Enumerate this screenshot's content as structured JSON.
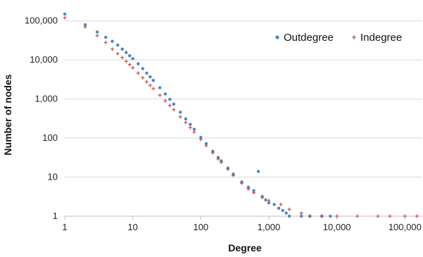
{
  "chart_data": {
    "type": "scatter",
    "title": "",
    "xlabel": "Degree",
    "ylabel": "Number of nodes",
    "x_scale": "log",
    "y_scale": "log",
    "xlim": [
      1,
      180000
    ],
    "ylim": [
      1,
      200000
    ],
    "x_ticks": [
      1,
      10,
      100,
      1000,
      10000,
      100000
    ],
    "x_tick_labels": [
      "1",
      "10",
      "100",
      "1,000",
      "10,000",
      "100,000"
    ],
    "y_ticks": [
      1,
      10,
      100,
      1000,
      10000,
      100000
    ],
    "y_tick_labels": [
      "1",
      "10",
      "100",
      "1,000",
      "10,000",
      "100,000"
    ],
    "grid": "horizontal",
    "legend_position": "top-right",
    "series": [
      {
        "name": "Outdegree",
        "color": "#4a86c5",
        "marker": "dot",
        "points": [
          [
            1,
            150000
          ],
          [
            2,
            80000
          ],
          [
            3,
            52000
          ],
          [
            4,
            38000
          ],
          [
            5,
            30000
          ],
          [
            6,
            24000
          ],
          [
            7,
            19000
          ],
          [
            8,
            15500
          ],
          [
            9,
            12800
          ],
          [
            10,
            10800
          ],
          [
            12,
            8000
          ],
          [
            14,
            6000
          ],
          [
            16,
            4600
          ],
          [
            18,
            3700
          ],
          [
            20,
            3000
          ],
          [
            25,
            1950
          ],
          [
            30,
            1350
          ],
          [
            35,
            980
          ],
          [
            40,
            740
          ],
          [
            50,
            460
          ],
          [
            60,
            310
          ],
          [
            70,
            225
          ],
          [
            80,
            168
          ],
          [
            100,
            104
          ],
          [
            120,
            72
          ],
          [
            150,
            46
          ],
          [
            180,
            32
          ],
          [
            200,
            26
          ],
          [
            250,
            17
          ],
          [
            300,
            12
          ],
          [
            400,
            7.5
          ],
          [
            500,
            5.5
          ],
          [
            600,
            4.5
          ],
          [
            700,
            14
          ],
          [
            800,
            3.2
          ],
          [
            900,
            2.6
          ],
          [
            1000,
            2.2
          ],
          [
            1200,
            2.0
          ],
          [
            1400,
            1.6
          ],
          [
            1600,
            1.4
          ],
          [
            1800,
            1.2
          ],
          [
            2000,
            1
          ],
          [
            3000,
            1
          ],
          [
            4000,
            1
          ],
          [
            6000,
            1
          ],
          [
            8000,
            1
          ]
        ]
      },
      {
        "name": "Indegree",
        "color": "#c0504d",
        "marker": "plus",
        "points": [
          [
            1,
            120000
          ],
          [
            2,
            70000
          ],
          [
            3,
            42000
          ],
          [
            4,
            28000
          ],
          [
            5,
            19000
          ],
          [
            6,
            14500
          ],
          [
            7,
            11500
          ],
          [
            8,
            9200
          ],
          [
            9,
            7600
          ],
          [
            10,
            6300
          ],
          [
            12,
            4600
          ],
          [
            14,
            3500
          ],
          [
            16,
            2750
          ],
          [
            18,
            2250
          ],
          [
            20,
            1850
          ],
          [
            25,
            1250
          ],
          [
            30,
            900
          ],
          [
            35,
            680
          ],
          [
            40,
            530
          ],
          [
            50,
            350
          ],
          [
            60,
            250
          ],
          [
            70,
            185
          ],
          [
            80,
            142
          ],
          [
            100,
            92
          ],
          [
            120,
            64
          ],
          [
            150,
            42
          ],
          [
            180,
            29
          ],
          [
            200,
            24
          ],
          [
            250,
            16
          ],
          [
            300,
            11
          ],
          [
            400,
            7
          ],
          [
            500,
            5
          ],
          [
            600,
            4
          ],
          [
            800,
            3
          ],
          [
            1000,
            2.5
          ],
          [
            1500,
            2
          ],
          [
            2000,
            1.5
          ],
          [
            3000,
            1.2
          ],
          [
            4000,
            1
          ],
          [
            6000,
            1
          ],
          [
            10000,
            1
          ],
          [
            20000,
            1
          ],
          [
            40000,
            1
          ],
          [
            60000,
            1
          ],
          [
            100000,
            1
          ],
          [
            150000,
            1
          ]
        ]
      }
    ]
  }
}
